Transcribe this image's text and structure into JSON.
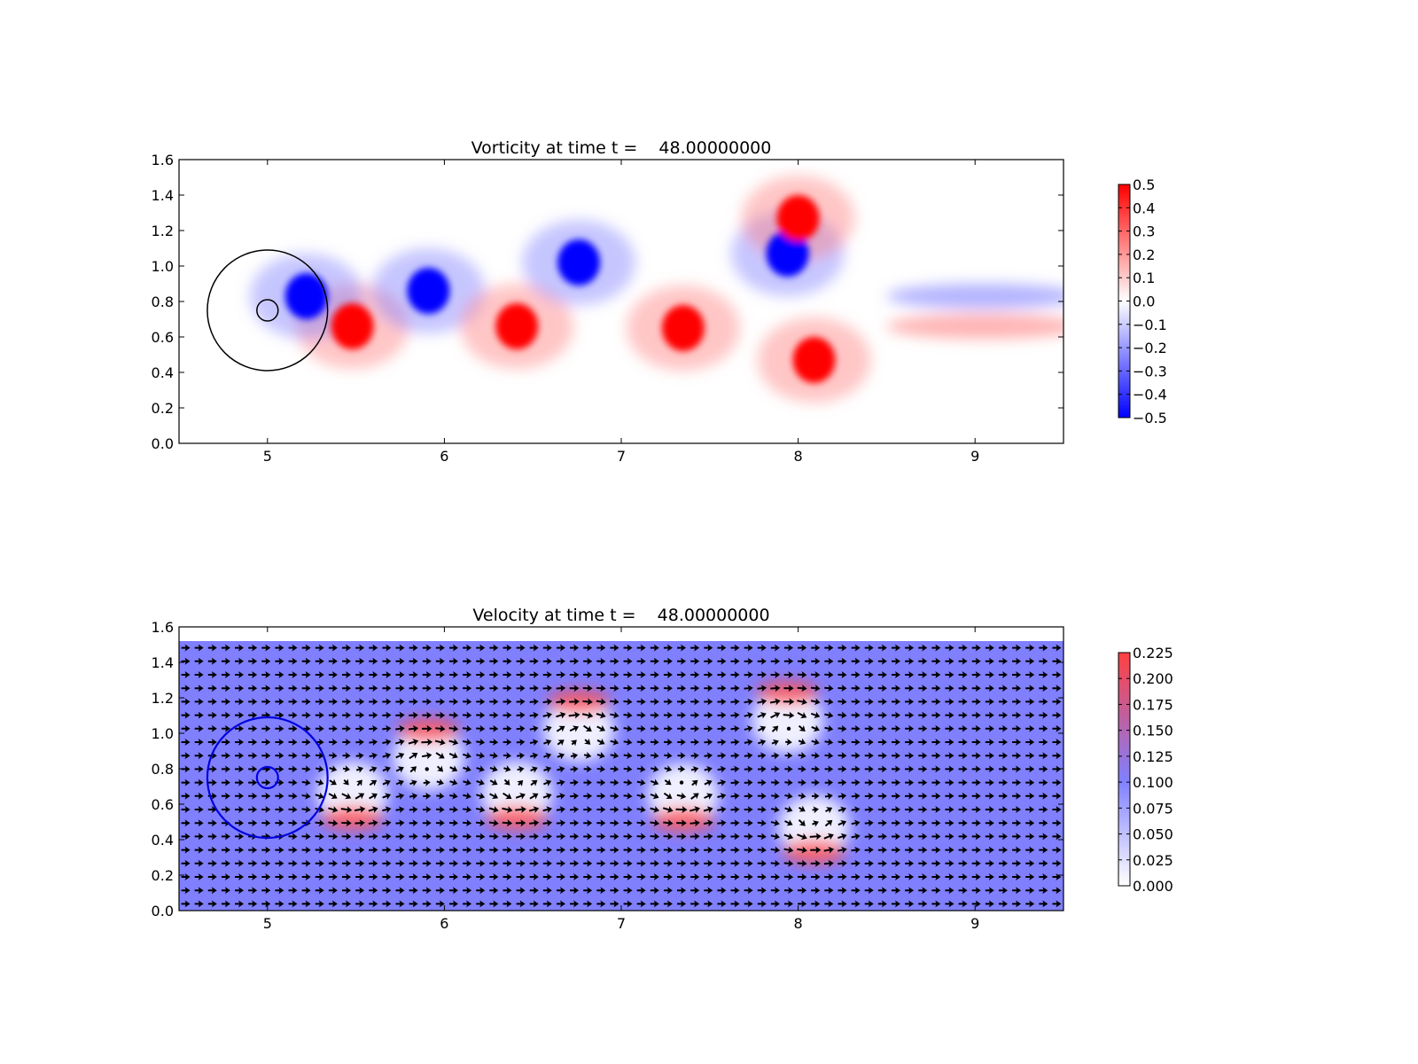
{
  "chart_data": [
    {
      "type": "heatmap",
      "title": "Vorticity at time t =    48.00000000",
      "xlabel": "",
      "ylabel": "",
      "xlim": [
        4.5,
        9.5
      ],
      "ylim": [
        0.0,
        1.6
      ],
      "x_ticks": [
        "5",
        "6",
        "7",
        "8",
        "9"
      ],
      "y_ticks": [
        "0.0",
        "0.2",
        "0.4",
        "0.6",
        "0.8",
        "1.0",
        "1.2",
        "1.4",
        "1.6"
      ],
      "colormap": {
        "low": "#0000ff",
        "mid": "#ffffff",
        "high": "#ff0000"
      },
      "color_range": [
        -0.5,
        0.5
      ],
      "colorbar_ticks": [
        "0.5",
        "0.4",
        "0.3",
        "0.2",
        "0.1",
        "0.0",
        "−0.1",
        "−0.2",
        "−0.3",
        "−0.4",
        "−0.5"
      ],
      "colorbar_values": [
        0.5,
        0.4,
        0.3,
        0.2,
        0.1,
        0.0,
        -0.1,
        -0.2,
        -0.3,
        -0.4,
        -0.5
      ],
      "grid": false,
      "vortices": [
        {
          "x": 5.48,
          "y": 0.66,
          "value": 0.5
        },
        {
          "x": 5.91,
          "y": 0.86,
          "value": -0.5
        },
        {
          "x": 6.41,
          "y": 0.66,
          "value": 0.5
        },
        {
          "x": 6.76,
          "y": 1.02,
          "value": -0.5
        },
        {
          "x": 7.35,
          "y": 0.65,
          "value": 0.5
        },
        {
          "x": 7.94,
          "y": 1.07,
          "value": -0.5
        },
        {
          "x": 8.09,
          "y": 0.47,
          "value": 0.5
        },
        {
          "x": 5.22,
          "y": 0.83,
          "value": -0.5
        },
        {
          "x": 8.0,
          "y": 1.27,
          "value": 0.45
        }
      ],
      "circles": [
        {
          "x": 5.0,
          "y": 0.75,
          "r": 0.34,
          "color": "#000000"
        },
        {
          "x": 5.0,
          "y": 0.75,
          "r": 0.06,
          "color": "#000000"
        }
      ]
    },
    {
      "type": "heatmap",
      "title": "Velocity at time t =    48.00000000",
      "xlabel": "",
      "ylabel": "",
      "xlim": [
        4.5,
        9.5
      ],
      "ylim": [
        0.0,
        1.6
      ],
      "x_ticks": [
        "5",
        "6",
        "7",
        "8",
        "9"
      ],
      "y_ticks": [
        "0.0",
        "0.2",
        "0.4",
        "0.6",
        "0.8",
        "1.0",
        "1.2",
        "1.4",
        "1.6"
      ],
      "colormap": {
        "low": "#ffffff",
        "mid": "#8080ff",
        "high": "#ff4040"
      },
      "color_range": [
        0.0,
        0.23
      ],
      "colorbar_ticks": [
        "0.225",
        "0.200",
        "0.175",
        "0.150",
        "0.125",
        "0.100",
        "0.075",
        "0.050",
        "0.025",
        "0.000"
      ],
      "colorbar_values": [
        0.225,
        0.2,
        0.175,
        0.15,
        0.125,
        0.1,
        0.075,
        0.05,
        0.025,
        0.0
      ],
      "data_top_y": 1.52,
      "background_speed": 0.1,
      "quiver": true,
      "grid": false,
      "vortices": [
        {
          "x": 5.48,
          "y": 0.66,
          "sign": 1
        },
        {
          "x": 5.91,
          "y": 0.86,
          "sign": -1
        },
        {
          "x": 6.41,
          "y": 0.66,
          "sign": 1
        },
        {
          "x": 6.76,
          "y": 1.02,
          "sign": -1
        },
        {
          "x": 7.35,
          "y": 0.65,
          "sign": 1
        },
        {
          "x": 7.94,
          "y": 1.07,
          "sign": -1
        },
        {
          "x": 8.09,
          "y": 0.47,
          "sign": 1
        }
      ],
      "circles": [
        {
          "x": 5.0,
          "y": 0.75,
          "r": 0.34,
          "color": "#0000dd"
        },
        {
          "x": 5.0,
          "y": 0.75,
          "r": 0.06,
          "color": "#0000dd"
        }
      ]
    }
  ]
}
